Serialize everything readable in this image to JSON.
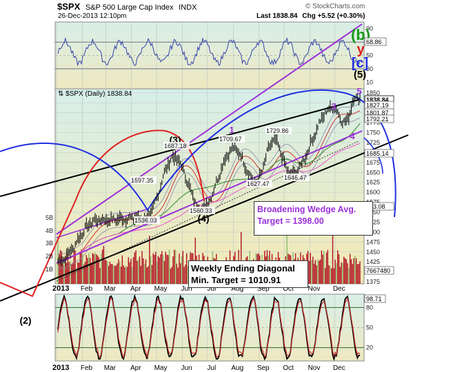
{
  "header": {
    "ticker": "$SPX",
    "name": "S&P 500 Large Cap Index",
    "exchange": "INDX",
    "datetime": "26-Dec-2013 12:10pm",
    "last_label": "Last",
    "last": "1838.84",
    "chg_label": "Chg",
    "chg": "+5.52 (+0.30%)",
    "credit": "© StockCharts.com"
  },
  "price_title": "$SPX (Daily) 1838.84",
  "wave_labels": {
    "b": "(b)",
    "y": "y",
    "c": "[c]",
    "five_paren": "(5)",
    "five": "5",
    "three_paren": "(3)",
    "three": "3",
    "four_paren": "(4)",
    "four": "4",
    "one": "1",
    "two": "2",
    "two_paren": "(2)"
  },
  "callouts": {
    "wedge_line1": "Broadening Wedge Avg.",
    "wedge_line2": "Target = 1398.00",
    "diag_line1": "Weekly Ending Diagonal",
    "diag_line2": "Min. Target = 1010.91"
  },
  "colors": {
    "panel_top": "#d7efea",
    "panel_bottom": "#f3e9b4",
    "price": "#000000",
    "wedge_purple": "#9b30d9",
    "trend_black": "#000000",
    "arc_red": "#e02020",
    "arc_blue": "#1f2fe0",
    "sma_green": "#2a8a2a",
    "sma_red": "#cc3333",
    "sma_pink": "#ee55cc",
    "boll": "#8888aa",
    "volume": "#b01020",
    "volume_up": "#8aba6a",
    "rsi": "#3344aa",
    "wave_green": "#1a9a1a",
    "wave_red": "#e02020",
    "wave_blue": "#1f2fe0",
    "wave_purple": "#9b30d9"
  },
  "chart_data": [
    {
      "type": "line",
      "title": "RSI",
      "y_ticks": [
        90,
        70,
        50,
        30,
        10
      ],
      "levels": [
        70,
        30
      ],
      "last_value": "68.86"
    },
    {
      "type": "line",
      "title": "$SPX (Daily) 1838.84",
      "x_ticks": [
        "2013",
        "Feb",
        "Mar",
        "Apr",
        "May",
        "Jun",
        "Jul",
        "Aug",
        "Sep",
        "Oct",
        "Nov",
        "Dec"
      ],
      "y_ticks": [
        1850,
        1825,
        1800,
        1775,
        1750,
        1725,
        1700,
        1675,
        1650,
        1625,
        1600,
        1575,
        1550,
        1525,
        1500,
        1475,
        1450,
        1425,
        1400,
        1375
      ],
      "ylim": [
        1370,
        1860
      ],
      "key_points": [
        {
          "date": "2013-01-02",
          "value": 1426
        },
        {
          "date": "2013-02-19",
          "value": 1530
        },
        {
          "date": "2013-04-18",
          "value": 1536.03
        },
        {
          "date": "2013-05-22",
          "value": 1687.18
        },
        {
          "date": "2013-06-24",
          "value": 1560.33
        },
        {
          "date": "2013-08-02",
          "value": 1709.67
        },
        {
          "date": "2013-08-28",
          "value": 1627.47
        },
        {
          "date": "2013-09-19",
          "value": 1729.86
        },
        {
          "date": "2013-10-09",
          "value": 1646.47
        },
        {
          "date": "2013-11-29",
          "value": 1813
        },
        {
          "date": "2013-12-13",
          "value": 1775
        },
        {
          "date": "2013-12-26",
          "value": 1838.84
        }
      ],
      "annotations": [
        "1597.35",
        "1687.18",
        "1536.03",
        "1560.33",
        "1709.67",
        "1627.47",
        "1729.86",
        "1646.47"
      ],
      "right_labels": [
        "1838.84",
        "1827.19",
        "1801.87",
        "1792.21",
        "1685.14",
        "543.08",
        "7667480"
      ],
      "volume_ticks": [
        "5B",
        "4B",
        "3B",
        "2B",
        "1B"
      ]
    },
    {
      "type": "line",
      "title": "Stochastic",
      "y_ticks": [
        80,
        50,
        20
      ],
      "levels": [
        80,
        20
      ],
      "last_value": "98.71"
    }
  ]
}
